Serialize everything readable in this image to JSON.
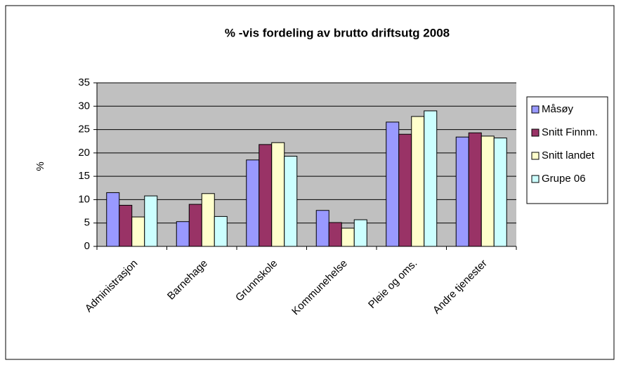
{
  "chart_data": {
    "type": "bar",
    "title": "% -vis fordeling av  brutto driftsutg  2008",
    "y_label": "%",
    "categories": [
      "Administrasjon",
      "Barnehage",
      "Grunnskole",
      "Kommunehelse",
      "Pleie og oms.",
      "Andre tjenester"
    ],
    "series": [
      {
        "name": "Måsøy",
        "color": "#9999ff",
        "values": [
          11.5,
          5.3,
          18.5,
          7.7,
          26.6,
          23.4
        ]
      },
      {
        "name": "Snitt Finnm.",
        "color": "#993366",
        "values": [
          8.8,
          9.0,
          21.8,
          5.1,
          24.0,
          24.3
        ]
      },
      {
        "name": "Snitt landet",
        "color": "#ffffcc",
        "values": [
          6.3,
          11.3,
          22.2,
          3.9,
          27.8,
          23.6
        ]
      },
      {
        "name": "Grupe 06",
        "color": "#ccffff",
        "values": [
          10.8,
          6.4,
          19.3,
          5.7,
          29.0,
          23.2
        ]
      }
    ],
    "ylim": [
      0,
      35
    ],
    "yticks": [
      0,
      5,
      10,
      15,
      20,
      25,
      30,
      35
    ],
    "grid": true,
    "legend": "right"
  }
}
